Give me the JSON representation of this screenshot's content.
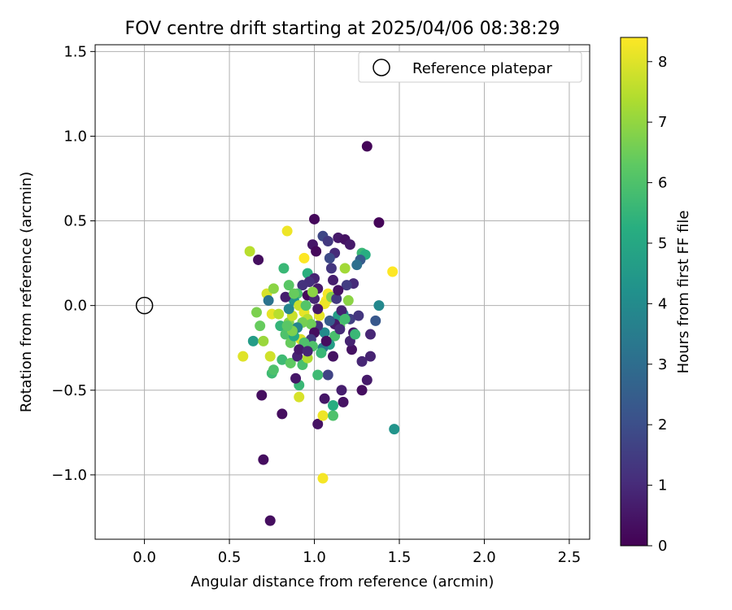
{
  "chart_data": {
    "type": "scatter",
    "title": "FOV centre drift starting at 2025/04/06 08:38:29",
    "xlabel": "Angular distance from reference (arcmin)",
    "ylabel": "Rotation from reference (arcmin)",
    "xlim": [
      -0.29,
      2.62
    ],
    "ylim": [
      -1.38,
      1.54
    ],
    "xticks": [
      0.0,
      0.5,
      1.0,
      1.5,
      2.0,
      2.5
    ],
    "xtick_labels": [
      "0.0",
      "0.5",
      "1.0",
      "1.5",
      "2.0",
      "2.5"
    ],
    "yticks": [
      -1.0,
      -0.5,
      0.0,
      0.5,
      1.0,
      1.5
    ],
    "ytick_labels": [
      "−1.0",
      "−0.5",
      "0.0",
      "0.5",
      "1.0",
      "1.5"
    ],
    "grid": true,
    "legend": {
      "placement": "upper right",
      "entries": [
        {
          "label": "Reference platepar",
          "marker": "open-circle",
          "x": 0.0,
          "y": 0.0
        }
      ]
    },
    "colorbar": {
      "label": "Hours from first FF file",
      "range": [
        0,
        8.4
      ],
      "ticks": [
        0,
        1,
        2,
        3,
        4,
        5,
        6,
        7,
        8
      ],
      "tick_labels": [
        "0",
        "1",
        "2",
        "3",
        "4",
        "5",
        "6",
        "7",
        "8"
      ],
      "colormap": "viridis"
    },
    "points": [
      [
        1.31,
        0.94,
        0.1
      ],
      [
        1.38,
        0.49,
        0.1
      ],
      [
        1.0,
        0.51,
        0.2
      ],
      [
        1.47,
        -0.73,
        4.3
      ],
      [
        0.7,
        -0.91,
        0.3
      ],
      [
        0.74,
        -1.27,
        0.3
      ],
      [
        1.05,
        -1.02,
        8.3
      ],
      [
        0.69,
        -0.53,
        0.3
      ],
      [
        0.81,
        -0.64,
        0.3
      ],
      [
        1.02,
        -0.7,
        0.4
      ],
      [
        1.05,
        -0.65,
        8.2
      ],
      [
        1.11,
        -0.65,
        6.0
      ],
      [
        1.11,
        -0.59,
        5.2
      ],
      [
        1.06,
        -0.55,
        0.5
      ],
      [
        1.17,
        -0.57,
        0.4
      ],
      [
        1.16,
        -0.5,
        0.7
      ],
      [
        1.28,
        -0.5,
        0.3
      ],
      [
        1.31,
        -0.44,
        0.6
      ],
      [
        0.91,
        -0.54,
        7.9
      ],
      [
        0.91,
        -0.47,
        5.6
      ],
      [
        0.89,
        -0.43,
        0.5
      ],
      [
        0.75,
        -0.4,
        5.7
      ],
      [
        0.76,
        -0.38,
        6.0
      ],
      [
        1.08,
        -0.41,
        1.7
      ],
      [
        1.02,
        -0.41,
        5.7
      ],
      [
        1.28,
        -0.33,
        0.9
      ],
      [
        1.33,
        -0.3,
        0.8
      ],
      [
        1.22,
        -0.26,
        0.4
      ],
      [
        0.58,
        -0.3,
        8.0
      ],
      [
        0.74,
        -0.3,
        7.8
      ],
      [
        0.64,
        -0.21,
        4.6
      ],
      [
        0.7,
        -0.21,
        7.1
      ],
      [
        0.66,
        -0.04,
        6.7
      ],
      [
        0.68,
        -0.12,
        6.4
      ],
      [
        0.62,
        0.32,
        7.5
      ],
      [
        0.67,
        0.27,
        0.3
      ],
      [
        0.84,
        0.44,
        8.2
      ],
      [
        0.94,
        0.28,
        8.4
      ],
      [
        0.96,
        0.19,
        5.3
      ],
      [
        0.82,
        0.22,
        5.6
      ],
      [
        0.85,
        0.12,
        6.2
      ],
      [
        0.72,
        0.07,
        7.9
      ],
      [
        0.76,
        0.1,
        6.9
      ],
      [
        0.73,
        0.03,
        3.2
      ],
      [
        0.75,
        -0.05,
        8.1
      ],
      [
        0.79,
        -0.05,
        7.5
      ],
      [
        0.8,
        -0.12,
        5.5
      ],
      [
        0.83,
        -0.17,
        6.0
      ],
      [
        0.86,
        -0.22,
        6.4
      ],
      [
        0.81,
        -0.32,
        5.7
      ],
      [
        0.86,
        -0.34,
        6.3
      ],
      [
        0.9,
        -0.3,
        0.8
      ],
      [
        0.93,
        -0.35,
        5.9
      ],
      [
        0.96,
        -0.31,
        7.4
      ],
      [
        0.92,
        -0.2,
        7.9
      ],
      [
        0.97,
        -0.23,
        5.3
      ],
      [
        0.99,
        0.36,
        0.5
      ],
      [
        1.01,
        0.32,
        0.2
      ],
      [
        1.05,
        0.41,
        1.8
      ],
      [
        1.08,
        0.38,
        1.4
      ],
      [
        1.14,
        0.4,
        0.6
      ],
      [
        1.18,
        0.39,
        0.4
      ],
      [
        1.21,
        0.36,
        0.6
      ],
      [
        1.12,
        0.31,
        1.0
      ],
      [
        1.09,
        0.28,
        1.9
      ],
      [
        1.18,
        0.22,
        7.2
      ],
      [
        1.28,
        0.31,
        5.6
      ],
      [
        1.3,
        0.3,
        5.2
      ],
      [
        1.27,
        0.27,
        2.4
      ],
      [
        1.25,
        0.24,
        3.1
      ],
      [
        1.23,
        0.13,
        1.0
      ],
      [
        1.19,
        0.12,
        1.5
      ],
      [
        1.1,
        0.22,
        1.3
      ],
      [
        1.11,
        0.15,
        0.7
      ],
      [
        1.46,
        0.2,
        8.4
      ],
      [
        1.38,
        0.0,
        3.9
      ],
      [
        1.36,
        -0.09,
        2.3
      ],
      [
        1.33,
        -0.17,
        0.9
      ],
      [
        1.21,
        -0.08,
        1.6
      ],
      [
        1.23,
        -0.16,
        0.5
      ],
      [
        1.21,
        -0.21,
        0.8
      ],
      [
        1.17,
        -0.05,
        3.7
      ],
      [
        1.2,
        0.03,
        6.9
      ],
      [
        1.14,
        -0.06,
        4.6
      ],
      [
        1.15,
        -0.12,
        6.2
      ],
      [
        1.12,
        -0.18,
        5.9
      ],
      [
        1.09,
        -0.23,
        4.6
      ],
      [
        1.05,
        -0.25,
        3.5
      ],
      [
        1.04,
        -0.28,
        5.6
      ],
      [
        1.11,
        -0.3,
        0.4
      ],
      [
        1.06,
        -0.16,
        4.0
      ],
      [
        1.02,
        -0.12,
        1.2
      ],
      [
        1.03,
        -0.06,
        8.1
      ],
      [
        1.07,
        0.03,
        8.4
      ],
      [
        1.08,
        0.07,
        8.3
      ],
      [
        1.06,
        0.01,
        8.2
      ],
      [
        1.1,
        0.05,
        6.8
      ],
      [
        1.13,
        0.04,
        1.4
      ],
      [
        1.14,
        0.09,
        0.4
      ],
      [
        1.02,
        0.1,
        0.6
      ],
      [
        1.0,
        0.16,
        0.8
      ],
      [
        0.97,
        0.14,
        1.1
      ],
      [
        0.93,
        0.12,
        1.2
      ],
      [
        0.9,
        0.07,
        5.9
      ],
      [
        0.88,
        0.03,
        4.3
      ],
      [
        0.91,
        0.0,
        7.7
      ],
      [
        0.94,
        -0.04,
        8.1
      ],
      [
        0.96,
        -0.08,
        7.5
      ],
      [
        0.98,
        -0.11,
        6.5
      ],
      [
        1.0,
        -0.16,
        0.3
      ],
      [
        0.98,
        -0.2,
        1.5
      ],
      [
        0.94,
        -0.22,
        6.0
      ],
      [
        0.91,
        -0.26,
        0.6
      ],
      [
        0.88,
        -0.18,
        5.1
      ],
      [
        0.85,
        -0.1,
        6.8
      ],
      [
        0.87,
        -0.06,
        7.7
      ],
      [
        0.85,
        -0.02,
        3.8
      ],
      [
        0.83,
        0.05,
        0.7
      ],
      [
        0.88,
        0.07,
        6.4
      ],
      [
        0.96,
        0.06,
        0.2
      ],
      [
        1.0,
        0.04,
        0.9
      ],
      [
        1.02,
        -0.02,
        0.5
      ],
      [
        0.99,
        0.08,
        6.9
      ],
      [
        0.95,
        0.0,
        6.1
      ],
      [
        0.93,
        -0.1,
        6.6
      ],
      [
        0.9,
        -0.13,
        3.8
      ],
      [
        0.87,
        -0.15,
        6.7
      ],
      [
        0.84,
        -0.12,
        6.2
      ],
      [
        0.99,
        -0.24,
        6.0
      ],
      [
        0.96,
        -0.27,
        0.9
      ],
      [
        1.12,
        -0.11,
        0.6
      ],
      [
        1.16,
        -0.03,
        0.8
      ],
      [
        1.18,
        -0.08,
        5.8
      ],
      [
        1.24,
        -0.17,
        5.6
      ],
      [
        1.26,
        -0.06,
        1.3
      ],
      [
        1.07,
        -0.21,
        0.3
      ],
      [
        1.15,
        -0.14,
        1.0
      ],
      [
        1.09,
        -0.09,
        2.4
      ]
    ]
  }
}
